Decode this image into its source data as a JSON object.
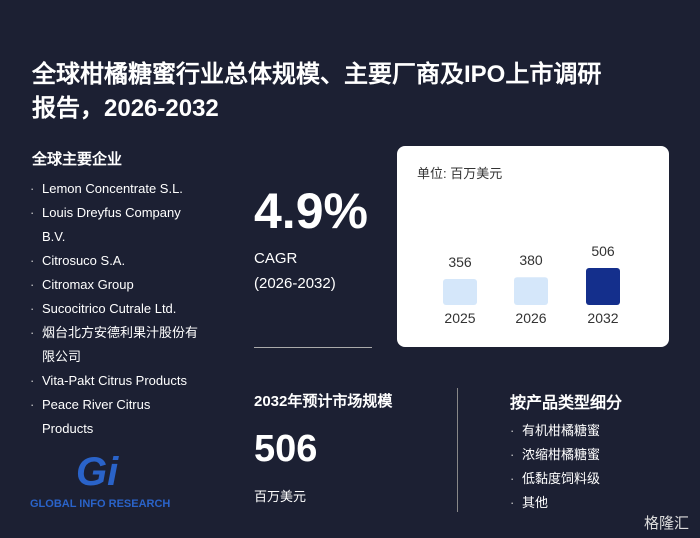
{
  "title": "全球柑橘糖蜜行业总体规模、主要厂商及IPO上市调研报告，2026-2032",
  "companies": {
    "heading": "全球主要企业",
    "items": [
      "Lemon Concentrate S.L.",
      "Louis Dreyfus Company B.V.",
      "Citrosuco S.A.",
      "Citromax Group",
      "Sucocitrico Cutrale Ltd.",
      "烟台北方安德利果汁股份有限公司",
      "Vita-Pakt Citrus Products",
      "Peace River Citrus Products"
    ]
  },
  "cagr": {
    "value": "4.9%",
    "label": "CAGR",
    "period": "(2026-2032)"
  },
  "market_size": {
    "heading": "2032年预计市场规模",
    "value": "506",
    "unit": "百万美元"
  },
  "segments": {
    "heading": "按产品类型细分",
    "items": [
      "有机柑橘糖蜜",
      "浓缩柑橘糖蜜",
      "低黏度饲料级",
      "其他"
    ]
  },
  "chart_data": {
    "type": "bar",
    "unit_label": "单位: 百万美元",
    "categories": [
      "2025",
      "2026",
      "2032"
    ],
    "values": [
      356,
      380,
      506
    ],
    "colors": [
      "#d5e7fa",
      "#d5e7fa",
      "#142f8c"
    ]
  },
  "logo": "Gi",
  "brand": "GLOBAL INFO RESEARCH",
  "watermark": "格隆汇"
}
